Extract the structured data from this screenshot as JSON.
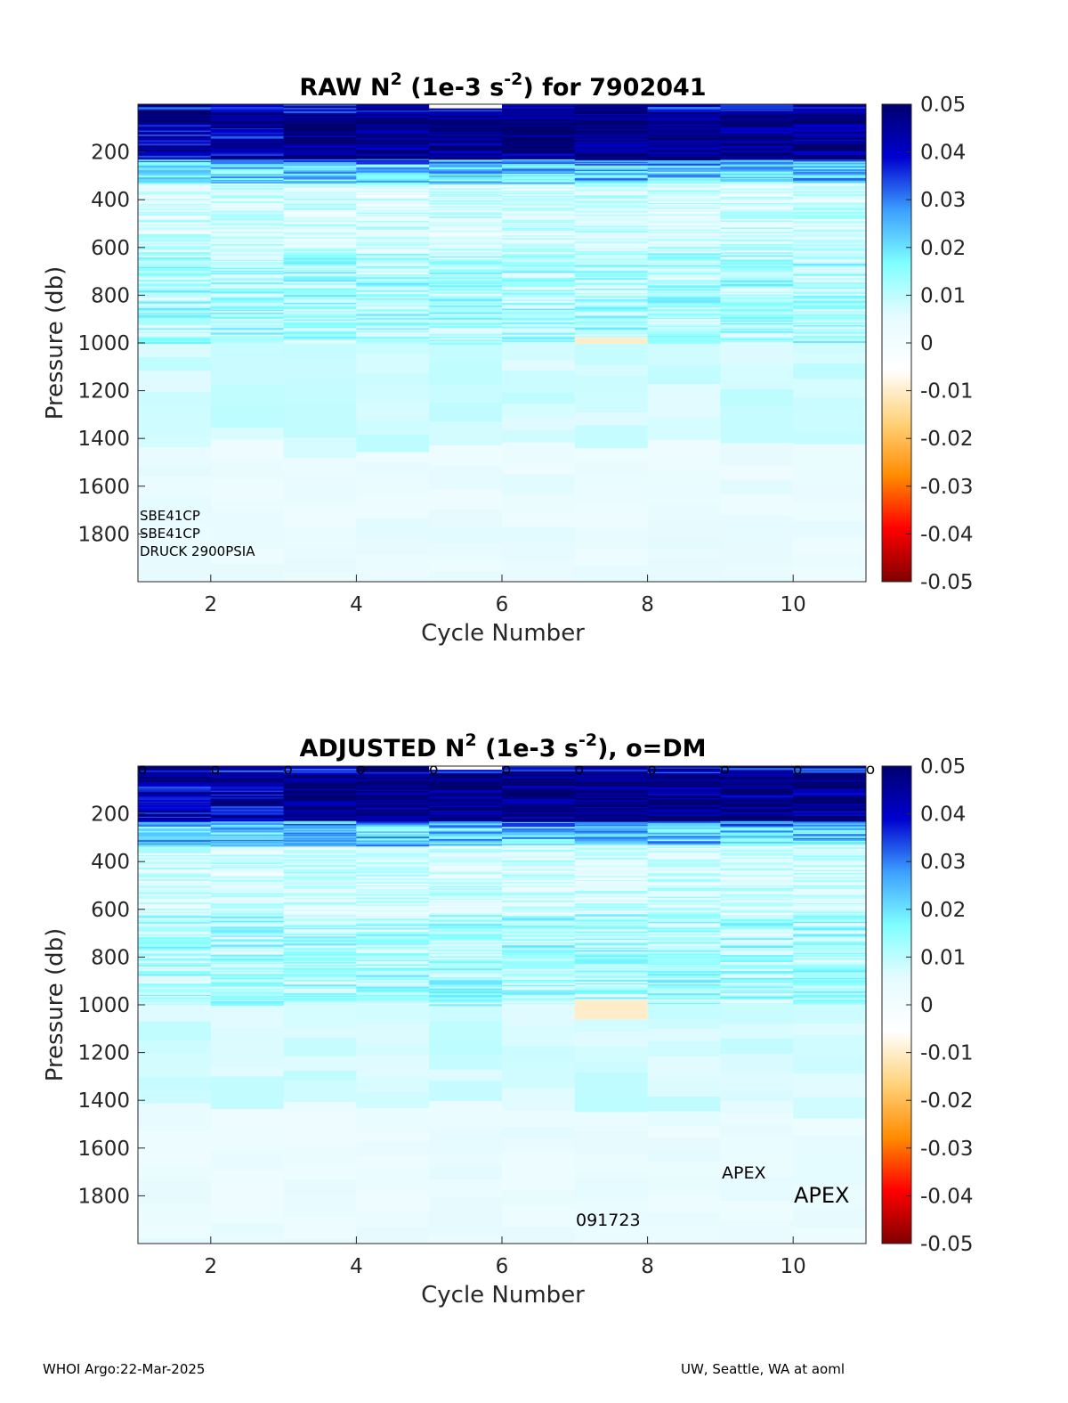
{
  "colors": {
    "colormap": [
      "#7f0000",
      "#ff0000",
      "#ff8c00",
      "#ffd27a",
      "#ffffff",
      "#e6fbff",
      "#7fffff",
      "#3ca0ff",
      "#0000d0",
      "#00006e"
    ],
    "axis": "#262626"
  },
  "chart_data": [
    {
      "type": "heatmap",
      "title_main": "RAW N",
      "title_sup": "2",
      "title_units": " (1e-3 s",
      "title_units_sup": "-2",
      "title_tail": ") for 7902041",
      "xlabel": "Cycle Number",
      "ylabel": "Pressure (db)",
      "x_cycles": [
        1,
        2,
        3,
        4,
        5,
        6,
        7,
        8,
        9,
        10
      ],
      "xlim": [
        1,
        11
      ],
      "ylim": [
        0,
        2000
      ],
      "y_reversed": true,
      "x_ticks": [
        "2",
        "4",
        "6",
        "8",
        "10"
      ],
      "y_ticks": [
        "200",
        "400",
        "600",
        "800",
        "1000",
        "1200",
        "1400",
        "1600",
        "1800"
      ],
      "colorbar_ticks": [
        "0.05",
        "0.04",
        "0.03",
        "0.02",
        "0.01",
        "0",
        "-0.01",
        "-0.02",
        "-0.03",
        "-0.04",
        "-0.05"
      ],
      "clim": [
        -0.05,
        0.05
      ],
      "profile_value_summary": [
        {
          "pmax": 60,
          "value": 0.045
        },
        {
          "pmax": 220,
          "value": 0.04
        },
        {
          "pmax": 350,
          "value": 0.02
        },
        {
          "pmax": 600,
          "value": 0.005
        },
        {
          "pmax": 1000,
          "value": 0.008
        },
        {
          "pmax": 1400,
          "value": 0.007
        },
        {
          "pmax": 2000,
          "value": 0.003
        }
      ],
      "negative_band": {
        "cycle": 7,
        "p": 990,
        "value": -0.01
      },
      "annotations": [
        "SBE41CP",
        "SBE41CP",
        "DRUCK 2900PSIA"
      ]
    },
    {
      "type": "heatmap",
      "title_main": "ADJUSTED N",
      "title_sup": "2",
      "title_units": " (1e-3 s",
      "title_units_sup": "-2",
      "title_tail": "), o=DM",
      "xlabel": "Cycle Number",
      "ylabel": "Pressure (db)",
      "x_cycles": [
        1,
        2,
        3,
        4,
        5,
        6,
        7,
        8,
        9,
        10
      ],
      "xlim": [
        1,
        11
      ],
      "ylim": [
        0,
        2000
      ],
      "y_reversed": true,
      "x_ticks": [
        "2",
        "4",
        "6",
        "8",
        "10"
      ],
      "y_ticks": [
        "200",
        "400",
        "600",
        "800",
        "1000",
        "1200",
        "1400",
        "1600",
        "1800"
      ],
      "colorbar_ticks": [
        "0.05",
        "0.04",
        "0.03",
        "0.02",
        "0.01",
        "0",
        "-0.01",
        "-0.02",
        "-0.03",
        "-0.04",
        "-0.05"
      ],
      "clim": [
        -0.05,
        0.05
      ],
      "dm_markers_x": [
        1,
        2,
        3,
        4,
        5,
        6,
        7,
        8,
        9,
        10,
        11
      ],
      "dm_marker_label": "o",
      "negative_band": {
        "cycle": 7,
        "p": 990,
        "value": -0.01
      },
      "annotations": {
        "serial": "091723",
        "model_small": "APEX",
        "model_large": "APEX"
      }
    }
  ],
  "footer": {
    "left": "WHOI Argo:22-Mar-2025",
    "right": "UW, Seattle, WA at aoml"
  }
}
